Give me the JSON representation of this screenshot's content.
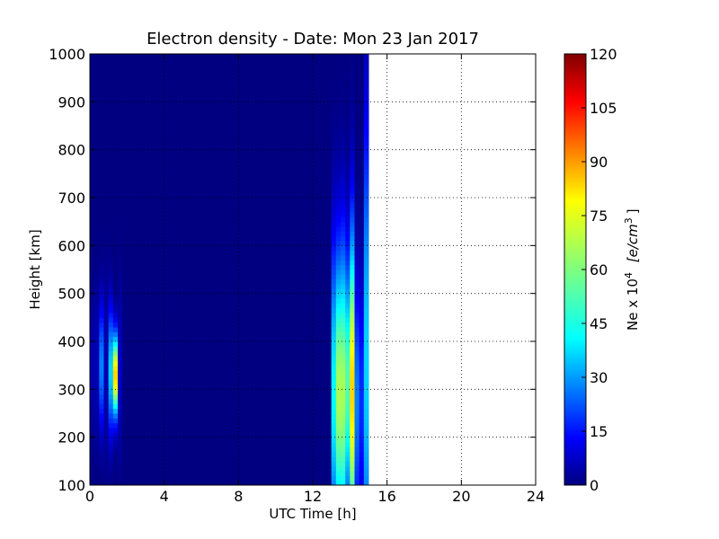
{
  "chart_data": {
    "type": "heatmap",
    "title": "Electron density - Date: Mon 23 Jan 2017",
    "xlabel": "UTC Time [h]",
    "ylabel": "Height [km]",
    "xlim": [
      0,
      24
    ],
    "ylim": [
      100,
      1000
    ],
    "x_ticks": [
      "0",
      "4",
      "8",
      "12",
      "16",
      "20",
      "24"
    ],
    "y_ticks": [
      "100",
      "200",
      "300",
      "400",
      "500",
      "600",
      "700",
      "800",
      "900",
      "1000"
    ],
    "grid": true,
    "colormap": "jet",
    "colorbar": {
      "label_main": "Ne x 10",
      "label_exponent": "4",
      "label_units": "[e/cm",
      "label_units_exponent": "3",
      "label_close": "]",
      "range": [
        0,
        120
      ],
      "ticks": [
        "0",
        "15",
        "30",
        "45",
        "60",
        "75",
        "90",
        "105",
        "120"
      ]
    },
    "data_extent_hours": [
      0,
      15
    ],
    "background_value": 0,
    "features": [
      {
        "t_start": 0.0,
        "t_end": 0.5,
        "h_center": 350,
        "h_sigma": 110,
        "peak": 6
      },
      {
        "t_start": 0.5,
        "t_end": 0.75,
        "h_center": 350,
        "h_sigma": 90,
        "peak": 30
      },
      {
        "t_start": 0.75,
        "t_end": 1.0,
        "h_center": 350,
        "h_sigma": 130,
        "peak": 6
      },
      {
        "t_start": 1.0,
        "t_end": 1.25,
        "h_center": 340,
        "h_sigma": 90,
        "peak": 40
      },
      {
        "t_start": 1.25,
        "t_end": 1.5,
        "h_center": 330,
        "h_sigma": 60,
        "peak": 80
      },
      {
        "t_start": 1.5,
        "t_end": 1.75,
        "h_center": 340,
        "h_sigma": 120,
        "peak": 8
      },
      {
        "t_start": 13.0,
        "t_end": 13.25,
        "h_center": 290,
        "h_sigma": 220,
        "peak": 45
      },
      {
        "t_start": 13.25,
        "t_end": 13.5,
        "h_center": 290,
        "h_sigma": 210,
        "peak": 65
      },
      {
        "t_start": 13.5,
        "t_end": 13.75,
        "h_center": 290,
        "h_sigma": 220,
        "peak": 65
      },
      {
        "t_start": 13.75,
        "t_end": 14.0,
        "h_center": 310,
        "h_sigma": 190,
        "peak": 55
      },
      {
        "t_start": 14.0,
        "t_end": 14.25,
        "h_center": 300,
        "h_sigma": 230,
        "peak": 80
      },
      {
        "t_start": 14.25,
        "t_end": 14.5,
        "h_center": 270,
        "h_sigma": 180,
        "peak": 30
      },
      {
        "t_start": 14.5,
        "t_end": 14.75,
        "h_center": 280,
        "h_sigma": 180,
        "peak": 20
      },
      {
        "t_start": 14.75,
        "t_end": 15.0,
        "h_center": 350,
        "h_sigma": 350,
        "peak": 40
      }
    ]
  }
}
